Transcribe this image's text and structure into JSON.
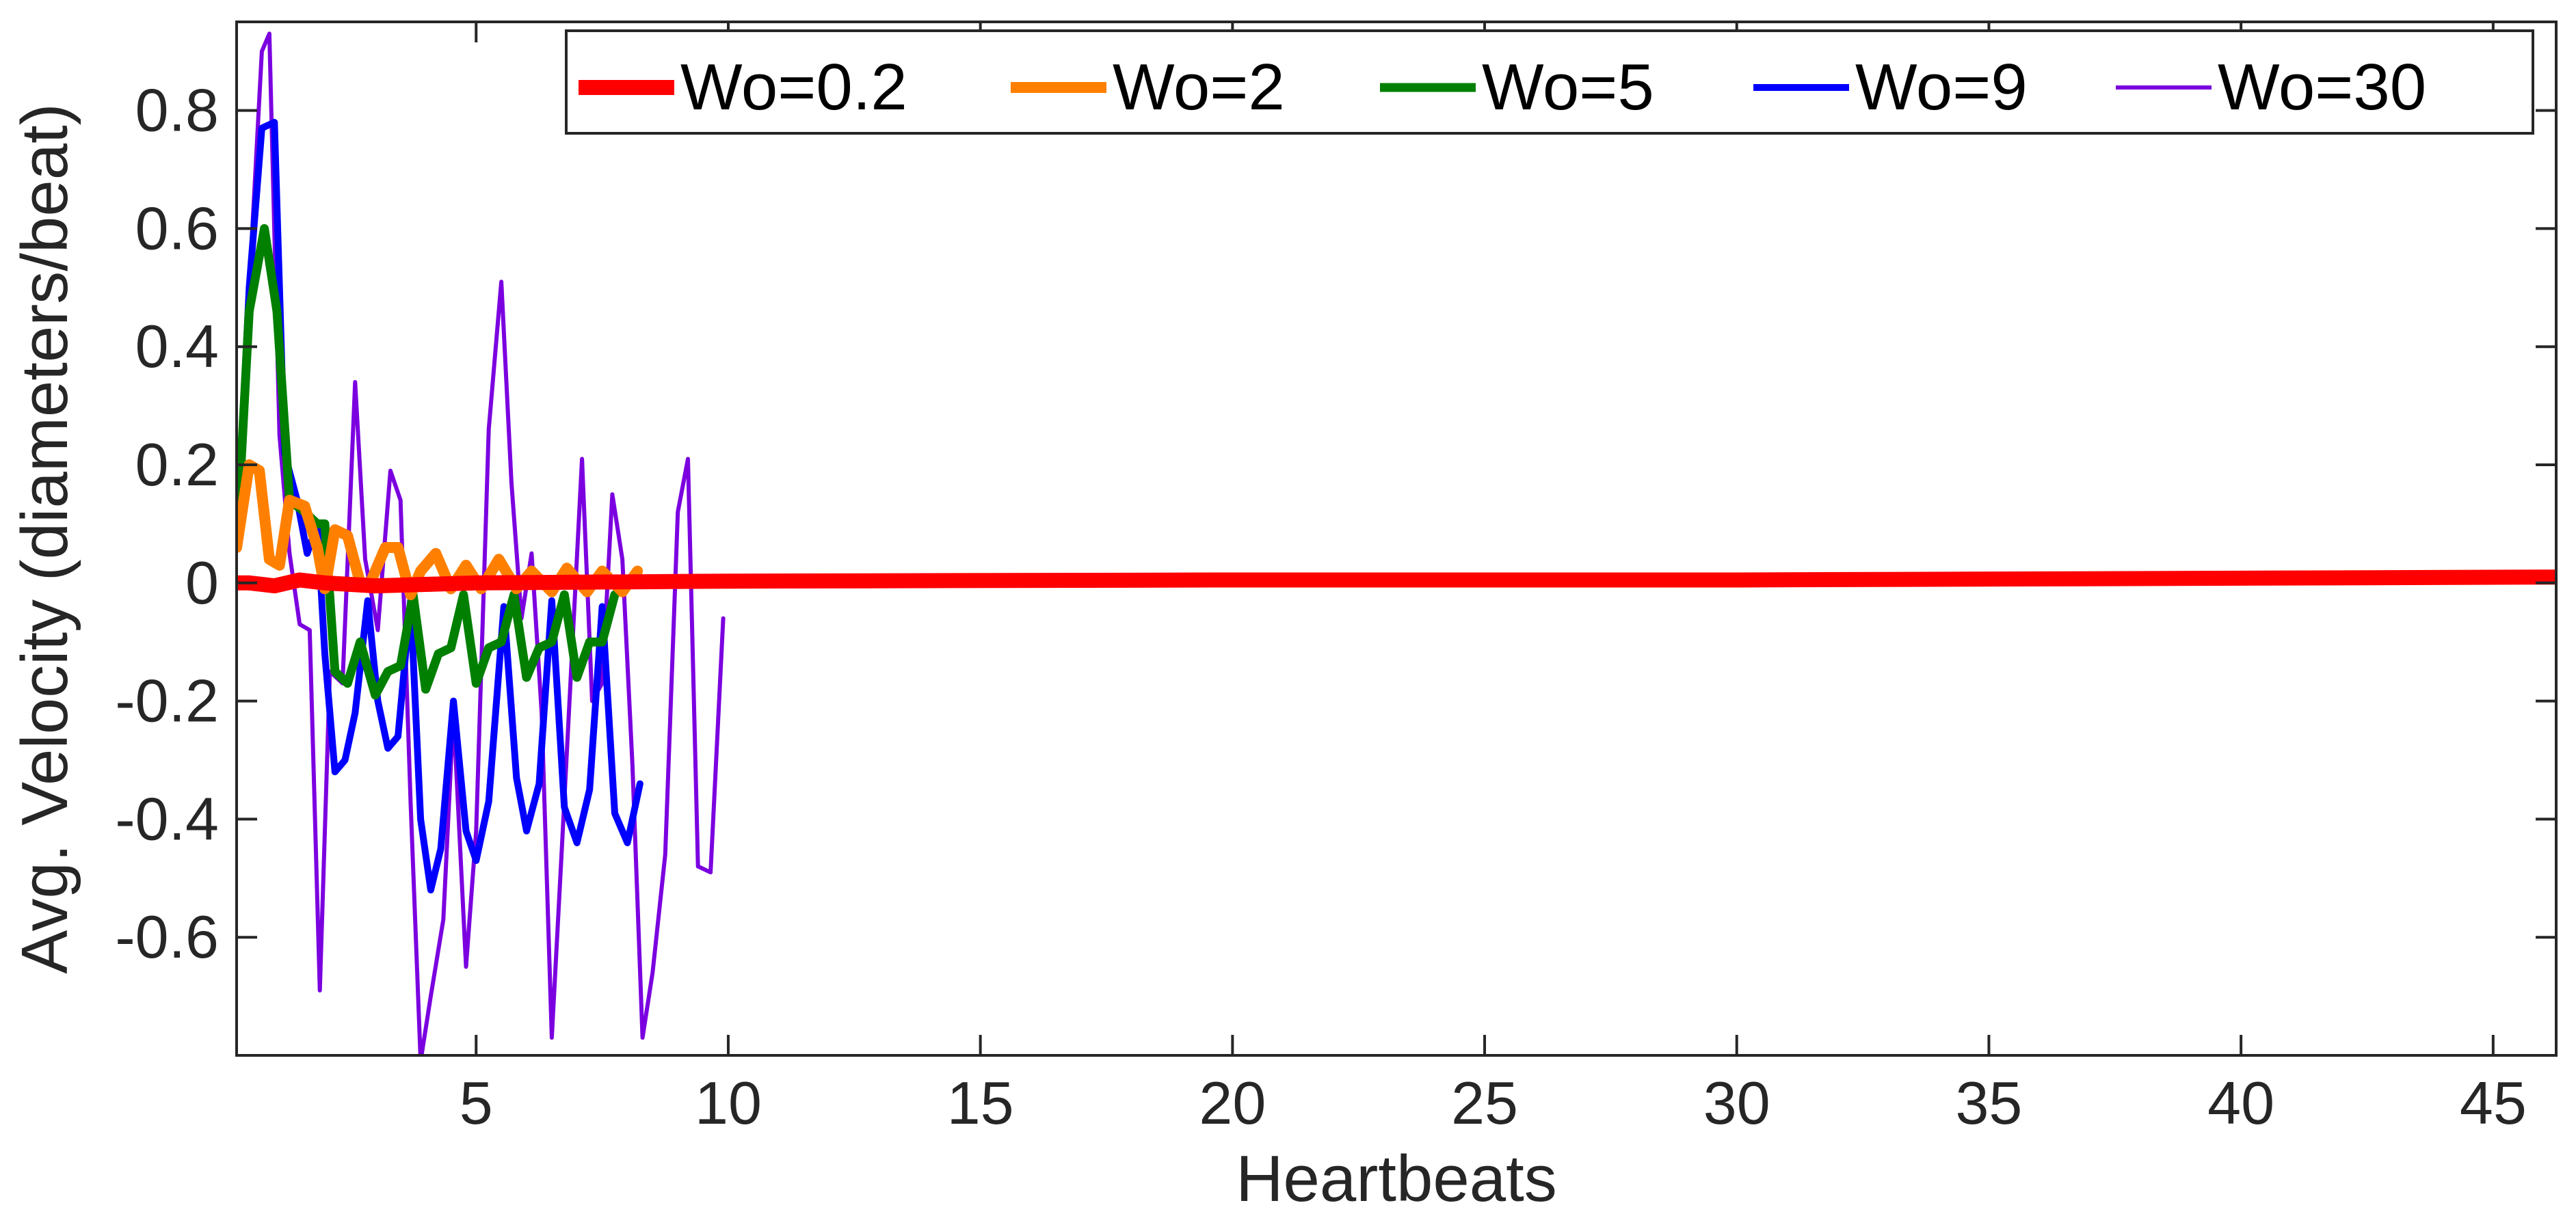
{
  "chart_data": {
    "type": "line",
    "title": "",
    "xlabel": "Heartbeats",
    "ylabel": "Avg. Velocity (diameters/beat)",
    "xlim": [
      0.25,
      46.25
    ],
    "ylim": [
      -0.8,
      0.95
    ],
    "xticks": [
      5,
      10,
      15,
      20,
      25,
      30,
      35,
      40,
      45
    ],
    "xtick_labels": [
      "5",
      "10",
      "15",
      "20",
      "25",
      "30",
      "35",
      "40",
      "45"
    ],
    "yticks": [
      -0.6,
      -0.4,
      -0.2,
      0,
      0.2,
      0.4,
      0.6,
      0.8
    ],
    "ytick_labels": [
      "-0.6",
      "-0.4",
      "-0.2",
      "0",
      "0.2",
      "0.4",
      "0.6",
      "0.8"
    ],
    "grid": false,
    "legend_position": "top-right",
    "series": [
      {
        "name": "Wo=0.2",
        "color": "#ff0000",
        "points": [
          [
            0.25,
            0.0
          ],
          [
            0.5,
            0.0
          ],
          [
            1.0,
            -0.005
          ],
          [
            1.5,
            0.005
          ],
          [
            2.0,
            0.0
          ],
          [
            3.0,
            -0.005
          ],
          [
            5.0,
            0.0
          ],
          [
            10.0,
            0.003
          ],
          [
            20.0,
            0.005
          ],
          [
            30.0,
            0.005
          ],
          [
            40.0,
            0.008
          ],
          [
            46.25,
            0.01
          ]
        ]
      },
      {
        "name": "Wo=2",
        "color": "#ff8000",
        "points": [
          [
            0.25,
            0.06
          ],
          [
            0.5,
            0.2
          ],
          [
            0.7,
            0.19
          ],
          [
            0.9,
            0.04
          ],
          [
            1.1,
            0.03
          ],
          [
            1.3,
            0.14
          ],
          [
            1.6,
            0.13
          ],
          [
            1.85,
            0.06
          ],
          [
            2.0,
            -0.01
          ],
          [
            2.2,
            0.09
          ],
          [
            2.45,
            0.08
          ],
          [
            2.7,
            0.0
          ],
          [
            2.9,
            0.0
          ],
          [
            3.2,
            0.06
          ],
          [
            3.45,
            0.06
          ],
          [
            3.7,
            -0.02
          ],
          [
            3.9,
            0.02
          ],
          [
            4.2,
            0.05
          ],
          [
            4.5,
            -0.01
          ],
          [
            4.8,
            0.03
          ],
          [
            5.1,
            -0.01
          ],
          [
            5.45,
            0.04
          ],
          [
            5.8,
            -0.01
          ],
          [
            6.1,
            0.02
          ],
          [
            6.5,
            -0.015
          ],
          [
            6.8,
            0.025
          ],
          [
            7.2,
            -0.015
          ],
          [
            7.5,
            0.02
          ],
          [
            7.9,
            -0.015
          ],
          [
            8.2,
            0.02
          ]
        ]
      },
      {
        "name": "Wo=5",
        "color": "#007f00",
        "points": [
          [
            0.25,
            0.06
          ],
          [
            0.5,
            0.46
          ],
          [
            0.8,
            0.6
          ],
          [
            1.05,
            0.46
          ],
          [
            1.3,
            0.14
          ],
          [
            1.6,
            0.12
          ],
          [
            1.85,
            0.1
          ],
          [
            2.0,
            0.1
          ],
          [
            2.2,
            -0.15
          ],
          [
            2.45,
            -0.17
          ],
          [
            2.7,
            -0.1
          ],
          [
            3.0,
            -0.19
          ],
          [
            3.25,
            -0.15
          ],
          [
            3.5,
            -0.14
          ],
          [
            3.75,
            -0.02
          ],
          [
            4.0,
            -0.18
          ],
          [
            4.25,
            -0.12
          ],
          [
            4.5,
            -0.11
          ],
          [
            4.75,
            -0.02
          ],
          [
            5.0,
            -0.17
          ],
          [
            5.25,
            -0.11
          ],
          [
            5.5,
            -0.1
          ],
          [
            5.75,
            -0.02
          ],
          [
            6.0,
            -0.16
          ],
          [
            6.25,
            -0.11
          ],
          [
            6.5,
            -0.1
          ],
          [
            6.75,
            -0.02
          ],
          [
            7.0,
            -0.16
          ],
          [
            7.25,
            -0.1
          ],
          [
            7.5,
            -0.1
          ],
          [
            7.75,
            -0.02
          ]
        ]
      },
      {
        "name": "Wo=9",
        "color": "#0000ff",
        "points": [
          [
            0.25,
            0.06
          ],
          [
            0.5,
            0.5
          ],
          [
            0.75,
            0.77
          ],
          [
            1.0,
            0.78
          ],
          [
            1.2,
            0.22
          ],
          [
            1.45,
            0.14
          ],
          [
            1.65,
            0.05
          ],
          [
            1.85,
            0.1
          ],
          [
            2.0,
            -0.12
          ],
          [
            2.2,
            -0.32
          ],
          [
            2.4,
            -0.3
          ],
          [
            2.6,
            -0.22
          ],
          [
            2.85,
            -0.03
          ],
          [
            3.05,
            -0.2
          ],
          [
            3.25,
            -0.28
          ],
          [
            3.45,
            -0.26
          ],
          [
            3.7,
            -0.03
          ],
          [
            3.9,
            -0.4
          ],
          [
            4.1,
            -0.52
          ],
          [
            4.3,
            -0.45
          ],
          [
            4.55,
            -0.2
          ],
          [
            4.8,
            -0.42
          ],
          [
            5.0,
            -0.47
          ],
          [
            5.25,
            -0.37
          ],
          [
            5.55,
            -0.04
          ],
          [
            5.8,
            -0.33
          ],
          [
            6.0,
            -0.42
          ],
          [
            6.25,
            -0.34
          ],
          [
            6.5,
            -0.03
          ],
          [
            6.75,
            -0.38
          ],
          [
            7.0,
            -0.44
          ],
          [
            7.25,
            -0.35
          ],
          [
            7.5,
            -0.04
          ],
          [
            7.75,
            -0.39
          ],
          [
            8.0,
            -0.44
          ],
          [
            8.25,
            -0.34
          ]
        ]
      },
      {
        "name": "Wo=30",
        "color": "#7b00e0",
        "points": [
          [
            0.25,
            0.06
          ],
          [
            0.5,
            0.5
          ],
          [
            0.75,
            0.9
          ],
          [
            0.9,
            0.93
          ],
          [
            1.1,
            0.25
          ],
          [
            1.3,
            0.05
          ],
          [
            1.5,
            -0.07
          ],
          [
            1.7,
            -0.08
          ],
          [
            1.9,
            -0.69
          ],
          [
            2.1,
            -0.15
          ],
          [
            2.35,
            -0.17
          ],
          [
            2.6,
            0.34
          ],
          [
            2.8,
            0.04
          ],
          [
            3.05,
            -0.08
          ],
          [
            3.3,
            0.19
          ],
          [
            3.5,
            0.14
          ],
          [
            3.7,
            -0.37
          ],
          [
            3.9,
            -0.81
          ],
          [
            4.1,
            -0.7
          ],
          [
            4.35,
            -0.57
          ],
          [
            4.55,
            -0.22
          ],
          [
            4.8,
            -0.65
          ],
          [
            5.0,
            -0.42
          ],
          [
            5.25,
            0.26
          ],
          [
            5.5,
            0.51
          ],
          [
            5.7,
            0.17
          ],
          [
            5.9,
            -0.06
          ],
          [
            6.1,
            0.05
          ],
          [
            6.3,
            -0.22
          ],
          [
            6.5,
            -0.77
          ],
          [
            6.7,
            -0.45
          ],
          [
            6.9,
            -0.12
          ],
          [
            7.1,
            0.21
          ],
          [
            7.3,
            -0.2
          ],
          [
            7.5,
            -0.17
          ],
          [
            7.7,
            0.15
          ],
          [
            7.9,
            0.04
          ],
          [
            8.1,
            -0.31
          ],
          [
            8.3,
            -0.77
          ],
          [
            8.5,
            -0.66
          ],
          [
            8.75,
            -0.46
          ],
          [
            9.0,
            0.12
          ],
          [
            9.2,
            0.21
          ],
          [
            9.4,
            -0.48
          ],
          [
            9.65,
            -0.49
          ],
          [
            9.9,
            -0.06
          ]
        ]
      }
    ]
  }
}
